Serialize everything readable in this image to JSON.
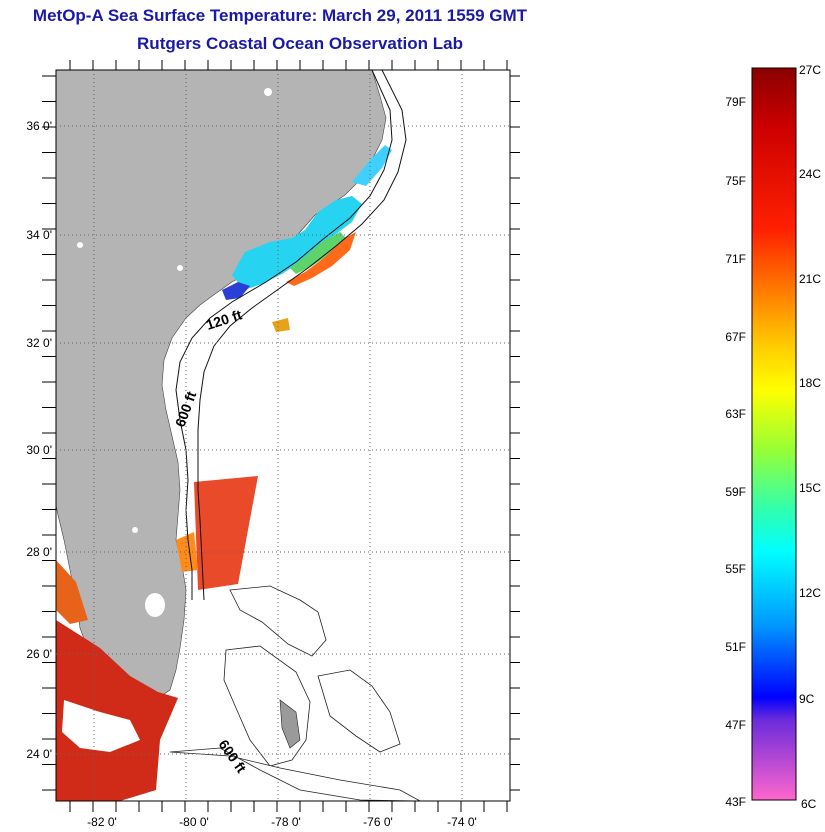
{
  "title": "MetOp-A Sea Surface Temperature:  March 29, 2011 1559 GMT",
  "subtitle": "Rutgers Coastal Ocean Observation Lab",
  "map": {
    "lat_labels": [
      "36 0'",
      "34 0'",
      "32 0'",
      "30 0'",
      "28 0'",
      "26 0'",
      "24 0'"
    ],
    "lon_labels": [
      "-82 0'",
      "-80 0'",
      "-78 0'",
      "-76 0'",
      "-74 0'"
    ],
    "contour_labels": [
      "120 ft",
      "600 ft",
      "600 ft"
    ],
    "land_color": "#b4b4b4",
    "ocean_color": "#ffffff"
  },
  "colorbar": {
    "f_labels": [
      "79F",
      "75F",
      "71F",
      "67F",
      "63F",
      "59F",
      "55F",
      "51F",
      "47F",
      "43F"
    ],
    "c_labels": [
      "27C",
      "24C",
      "21C",
      "18C",
      "15C",
      "12C",
      "9C",
      "6C"
    ],
    "stops": [
      "#8a0000",
      "#ff1a00",
      "#ff9900",
      "#ffff00",
      "#33ff66",
      "#00ffff",
      "#0066ff",
      "#0000cc",
      "#8a2be2",
      "#ff66cc"
    ]
  }
}
